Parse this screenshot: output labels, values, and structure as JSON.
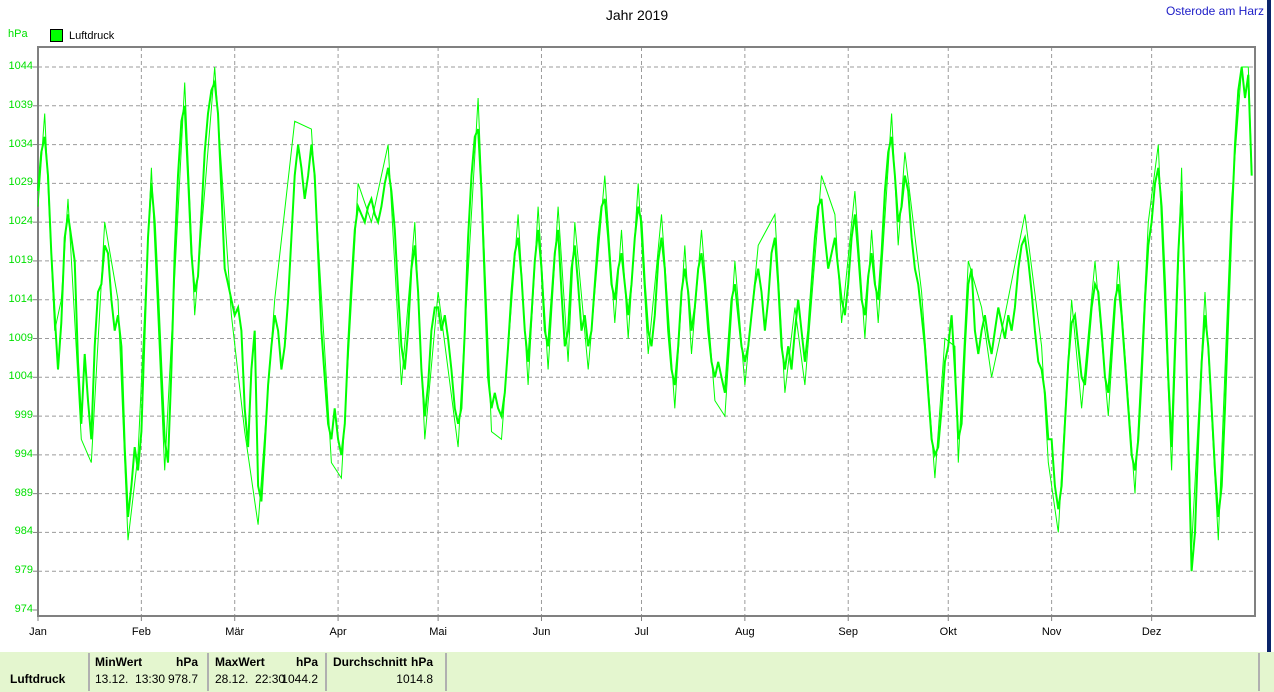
{
  "header": {
    "location": "Osterode am Harz"
  },
  "legend": {
    "label": "Luftdruck"
  },
  "axis": {
    "unit_label": "hPa",
    "y_ticks": [
      1044,
      1039,
      1034,
      1029,
      1024,
      1019,
      1014,
      1009,
      1004,
      999,
      994,
      989,
      984,
      979,
      974
    ],
    "month_labels": [
      "Jan",
      "Feb",
      "Mär",
      "Apr",
      "Mai",
      "Jun",
      "Jul",
      "Aug",
      "Sep",
      "Okt",
      "Nov",
      "Dez"
    ]
  },
  "colors": {
    "line": "#00ff00",
    "axis_text": "#00e000",
    "grid": "#9b9b9b",
    "border": "#808080",
    "table_bg": "#e4f6cf",
    "table_sep": "#b0b0b0",
    "location_text": "#2020c8",
    "accent_bar": "#0a246a"
  },
  "chart_data": {
    "type": "line",
    "title": "Jahr 2019",
    "xlabel": "",
    "ylabel": "hPa",
    "ylim": [
      974,
      1046.5
    ],
    "y_tick_step": 5,
    "grid": "dashed",
    "legend_position": "top-left",
    "days_in_year": 365,
    "month_start_days": [
      0,
      31,
      59,
      90,
      120,
      151,
      181,
      212,
      243,
      273,
      304,
      334
    ],
    "series": [
      {
        "name": "Luftdruck",
        "line": "thick",
        "sampling": "daily hPa values, day 0 = 1.Jan",
        "values": [
          1028,
          1033,
          1035,
          1030,
          1020,
          1012,
          1005,
          1011,
          1022,
          1025,
          1022,
          1019,
          1006,
          998,
          1007,
          1001,
          996,
          1008,
          1015,
          1016,
          1021,
          1020,
          1014,
          1010,
          1012,
          1008,
          995,
          986,
          990,
          995,
          992,
          997,
          1010,
          1022,
          1029,
          1024,
          1015,
          1005,
          996,
          993,
          1005,
          1020,
          1030,
          1037,
          1039,
          1030,
          1020,
          1015,
          1017,
          1025,
          1033,
          1038,
          1041,
          1042,
          1038,
          1028,
          1018,
          1016,
          1014,
          1012,
          1013,
          1010,
          1000,
          995,
          1005,
          1010,
          990,
          988,
          995,
          1003,
          1008,
          1012,
          1010,
          1005,
          1008,
          1014,
          1022,
          1030,
          1034,
          1031,
          1027,
          1030,
          1034,
          1030,
          1020,
          1010,
          1004,
          998,
          996,
          1000,
          996,
          994,
          998,
          1008,
          1016,
          1023,
          1026,
          1025,
          1024,
          1026,
          1027,
          1025,
          1024,
          1026,
          1029,
          1031,
          1028,
          1023,
          1015,
          1008,
          1005,
          1010,
          1018,
          1021,
          1015,
          1005,
          999,
          1003,
          1010,
          1013,
          1013,
          1010,
          1012,
          1009,
          1005,
          1000,
          998,
          1000,
          1010,
          1022,
          1030,
          1035,
          1036,
          1028,
          1016,
          1004,
          1000,
          1002,
          1000,
          999,
          1002,
          1008,
          1015,
          1020,
          1022,
          1017,
          1010,
          1006,
          1012,
          1019,
          1023,
          1018,
          1010,
          1008,
          1014,
          1020,
          1023,
          1015,
          1008,
          1010,
          1018,
          1021,
          1016,
          1010,
          1012,
          1008,
          1010,
          1016,
          1022,
          1026,
          1027,
          1022,
          1016,
          1014,
          1018,
          1020,
          1016,
          1012,
          1016,
          1022,
          1026,
          1024,
          1016,
          1010,
          1008,
          1012,
          1019,
          1022,
          1018,
          1010,
          1005,
          1003,
          1008,
          1015,
          1018,
          1015,
          1010,
          1013,
          1018,
          1020,
          1016,
          1010,
          1006,
          1004,
          1006,
          1004,
          1002,
          1008,
          1014,
          1016,
          1012,
          1008,
          1006,
          1008,
          1012,
          1016,
          1018,
          1015,
          1010,
          1014,
          1020,
          1022,
          1016,
          1008,
          1005,
          1008,
          1005,
          1010,
          1014,
          1010,
          1006,
          1010,
          1016,
          1022,
          1026,
          1027,
          1022,
          1018,
          1020,
          1022,
          1018,
          1014,
          1012,
          1016,
          1022,
          1025,
          1020,
          1014,
          1012,
          1017,
          1020,
          1016,
          1014,
          1020,
          1028,
          1033,
          1035,
          1030,
          1024,
          1026,
          1030,
          1028,
          1022,
          1018,
          1016,
          1012,
          1008,
          1002,
          996,
          994,
          995,
          1000,
          1006,
          1008,
          1012,
          1005,
          996,
          998,
          1008,
          1016,
          1018,
          1010,
          1007,
          1010,
          1012,
          1009,
          1007,
          1010,
          1013,
          1011,
          1009,
          1012,
          1010,
          1013,
          1018,
          1021,
          1022,
          1019,
          1015,
          1010,
          1006,
          1005,
          1002,
          996,
          996,
          990,
          987,
          990,
          998,
          1006,
          1011,
          1012,
          1008,
          1004,
          1003,
          1008,
          1013,
          1016,
          1015,
          1010,
          1004,
          1002,
          1008,
          1014,
          1016,
          1012,
          1006,
          1000,
          994,
          992,
          996,
          1004,
          1014,
          1021,
          1024,
          1029,
          1031,
          1026,
          1016,
          1004,
          995,
          1008,
          1020,
          1028,
          1014,
          996,
          979,
          984,
          996,
          1006,
          1012,
          1008,
          1000,
          992,
          986,
          990,
          1000,
          1012,
          1024,
          1034,
          1041,
          1044,
          1040,
          1043,
          1030
        ]
      },
      {
        "name": "Luftdruck",
        "line": "thin",
        "sampling": "anchor points [day, hPa]",
        "points": [
          [
            0,
            1026
          ],
          [
            2,
            1038
          ],
          [
            5,
            1010
          ],
          [
            7,
            1014
          ],
          [
            9,
            1027
          ],
          [
            13,
            996
          ],
          [
            16,
            993
          ],
          [
            20,
            1024
          ],
          [
            24,
            1014
          ],
          [
            27,
            983
          ],
          [
            30,
            994
          ],
          [
            34,
            1031
          ],
          [
            38,
            992
          ],
          [
            44,
            1042
          ],
          [
            47,
            1012
          ],
          [
            53,
            1044
          ],
          [
            58,
            1012
          ],
          [
            62,
            997
          ],
          [
            66,
            985
          ],
          [
            71,
            1014
          ],
          [
            77,
            1037
          ],
          [
            82,
            1036
          ],
          [
            88,
            993
          ],
          [
            91,
            991
          ],
          [
            96,
            1029
          ],
          [
            100,
            1024
          ],
          [
            105,
            1034
          ],
          [
            109,
            1003
          ],
          [
            113,
            1024
          ],
          [
            116,
            996
          ],
          [
            120,
            1015
          ],
          [
            126,
            995
          ],
          [
            132,
            1040
          ],
          [
            136,
            997
          ],
          [
            139,
            996
          ],
          [
            144,
            1025
          ],
          [
            147,
            1003
          ],
          [
            150,
            1026
          ],
          [
            153,
            1005
          ],
          [
            156,
            1026
          ],
          [
            159,
            1006
          ],
          [
            161,
            1024
          ],
          [
            165,
            1005
          ],
          [
            170,
            1030
          ],
          [
            173,
            1011
          ],
          [
            175,
            1023
          ],
          [
            177,
            1009
          ],
          [
            180,
            1029
          ],
          [
            183,
            1007
          ],
          [
            187,
            1025
          ],
          [
            191,
            1000
          ],
          [
            194,
            1021
          ],
          [
            196,
            1007
          ],
          [
            199,
            1023
          ],
          [
            203,
            1001
          ],
          [
            206,
            999
          ],
          [
            209,
            1019
          ],
          [
            212,
            1003
          ],
          [
            216,
            1021
          ],
          [
            221,
            1025
          ],
          [
            224,
            1002
          ],
          [
            227,
            1013
          ],
          [
            230,
            1003
          ],
          [
            235,
            1030
          ],
          [
            239,
            1025
          ],
          [
            241,
            1011
          ],
          [
            245,
            1028
          ],
          [
            248,
            1009
          ],
          [
            250,
            1023
          ],
          [
            252,
            1011
          ],
          [
            256,
            1038
          ],
          [
            258,
            1021
          ],
          [
            260,
            1033
          ],
          [
            265,
            1015
          ],
          [
            269,
            991
          ],
          [
            272,
            1009
          ],
          [
            275,
            1008
          ],
          [
            276,
            993
          ],
          [
            279,
            1019
          ],
          [
            283,
            1013
          ],
          [
            286,
            1004
          ],
          [
            290,
            1012
          ],
          [
            296,
            1025
          ],
          [
            301,
            1008
          ],
          [
            303,
            993
          ],
          [
            306,
            984
          ],
          [
            310,
            1014
          ],
          [
            313,
            1000
          ],
          [
            317,
            1019
          ],
          [
            321,
            999
          ],
          [
            324,
            1019
          ],
          [
            329,
            989
          ],
          [
            333,
            1024
          ],
          [
            336,
            1034
          ],
          [
            340,
            992
          ],
          [
            343,
            1031
          ],
          [
            346,
            982
          ],
          [
            350,
            1015
          ],
          [
            354,
            983
          ],
          [
            358,
            1027
          ],
          [
            361,
            1044
          ],
          [
            363,
            1044
          ],
          [
            364,
            1031
          ]
        ]
      }
    ]
  },
  "summary_table": {
    "row_label": "Luftdruck",
    "min": {
      "header": "MinWert",
      "unit_header": "hPa",
      "date": "13.12.",
      "time": "13:30",
      "value": "978.7"
    },
    "max": {
      "header": "MaxWert",
      "unit_header": "hPa",
      "date": "28.12.",
      "time": "22:30",
      "value": "1044.2"
    },
    "avg": {
      "header": "Durchschnitt",
      "unit_header": "hPa",
      "value": "1014.8"
    }
  }
}
